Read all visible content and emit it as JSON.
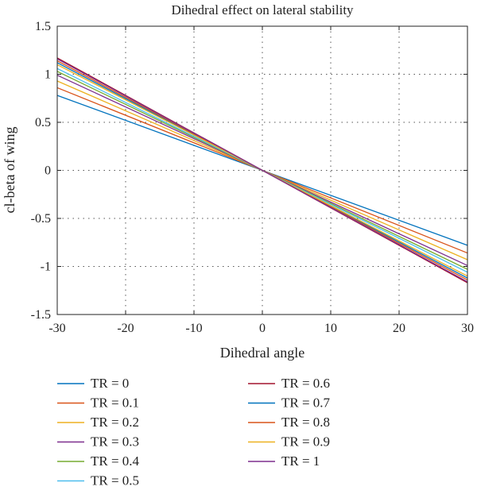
{
  "chart_data": {
    "type": "line",
    "title": "Dihedral effect on lateral stability",
    "xlabel": "Dihedral angle",
    "ylabel": "cl-beta of wing",
    "xlim": [
      -30,
      30
    ],
    "ylim": [
      -1.5,
      1.5
    ],
    "xticks": [
      -30,
      -20,
      -10,
      0,
      10,
      20,
      30
    ],
    "xtick_labels": [
      "-30",
      "-20",
      "-10",
      "0",
      "10",
      "20",
      "30"
    ],
    "yticks": [
      1.5,
      1,
      0.5,
      0,
      -0.5,
      -1,
      -1.5
    ],
    "ytick_labels": [
      "1.5",
      "1",
      "0.5",
      "0",
      "-0.5",
      "-1",
      "-1.5"
    ],
    "grid": true,
    "legend_position": "bottom",
    "series": [
      {
        "name": "TR = 0",
        "color": "#0072BD",
        "x": [
          -30,
          30
        ],
        "y": [
          0.78,
          -0.78
        ]
      },
      {
        "name": "TR = 0.1",
        "color": "#D95319",
        "x": [
          -30,
          30
        ],
        "y": [
          0.86,
          -0.86
        ]
      },
      {
        "name": "TR = 0.2",
        "color": "#EDB120",
        "x": [
          -30,
          30
        ],
        "y": [
          0.93,
          -0.93
        ]
      },
      {
        "name": "TR = 0.3",
        "color": "#7E2F8E",
        "x": [
          -30,
          30
        ],
        "y": [
          0.99,
          -0.99
        ]
      },
      {
        "name": "TR = 0.4",
        "color": "#77AC30",
        "x": [
          -30,
          30
        ],
        "y": [
          1.03,
          -1.03
        ]
      },
      {
        "name": "TR = 0.5",
        "color": "#4DBEEE",
        "x": [
          -30,
          30
        ],
        "y": [
          1.06,
          -1.06
        ]
      },
      {
        "name": "TR = 0.6",
        "color": "#A2142F",
        "x": [
          -30,
          30
        ],
        "y": [
          1.17,
          -1.17
        ]
      },
      {
        "name": "TR = 0.7",
        "color": "#0072BD",
        "x": [
          -30,
          30
        ],
        "y": [
          1.12,
          -1.12
        ]
      },
      {
        "name": "TR = 0.8",
        "color": "#D95319",
        "x": [
          -30,
          30
        ],
        "y": [
          1.14,
          -1.14
        ]
      },
      {
        "name": "TR = 0.9",
        "color": "#EDB120",
        "x": [
          -30,
          30
        ],
        "y": [
          1.1,
          -1.1
        ]
      },
      {
        "name": "TR = 1",
        "color": "#7E2F8E",
        "x": [
          -30,
          30
        ],
        "y": [
          1.16,
          -1.16
        ]
      }
    ]
  }
}
